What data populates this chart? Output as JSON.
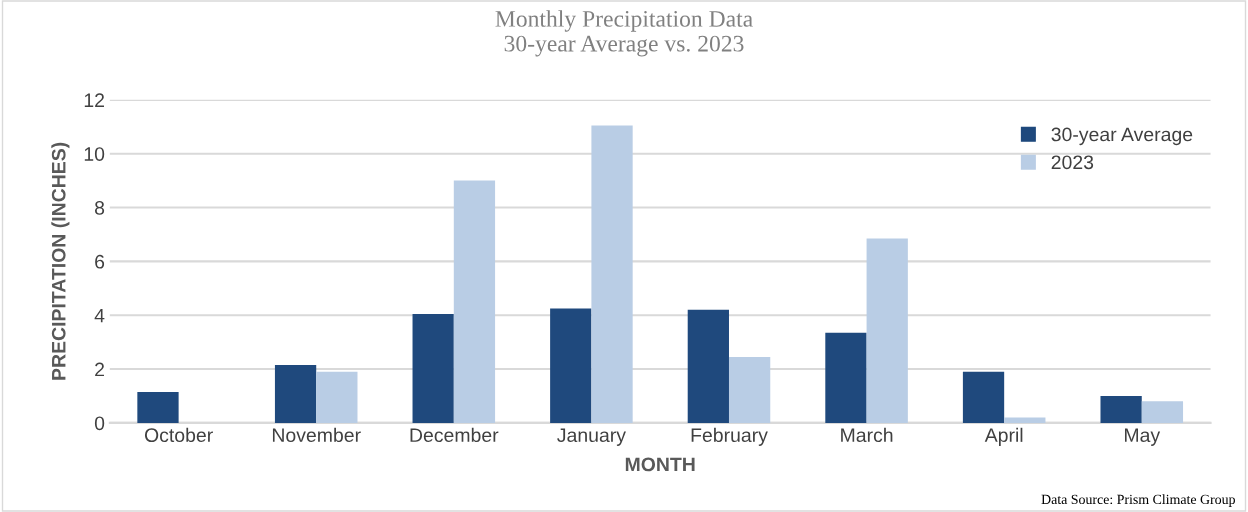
{
  "chart_data": {
    "type": "bar",
    "title": "Monthly Precipitation Data\n30-year Average vs. 2023",
    "xlabel": "MONTH",
    "ylabel": "PRECIPITATION (INCHES)",
    "categories": [
      "October",
      "November",
      "December",
      "January",
      "February",
      "March",
      "April",
      "May"
    ],
    "series": [
      {
        "name": "30-year Average",
        "color": "#1f497d",
        "values": [
          1.15,
          2.15,
          4.05,
          4.25,
          4.2,
          3.35,
          1.9,
          1.0
        ]
      },
      {
        "name": "2023",
        "color": "#b9cde5",
        "values": [
          0,
          1.9,
          9.0,
          11.05,
          2.45,
          6.85,
          0.2,
          0.8
        ]
      }
    ],
    "ylim": [
      0,
      12
    ],
    "yticks": [
      0,
      2,
      4,
      6,
      8,
      10,
      12
    ],
    "grid": "y",
    "legend": "top right",
    "annotations": [
      "Data Source: Prism Climate Group"
    ]
  }
}
